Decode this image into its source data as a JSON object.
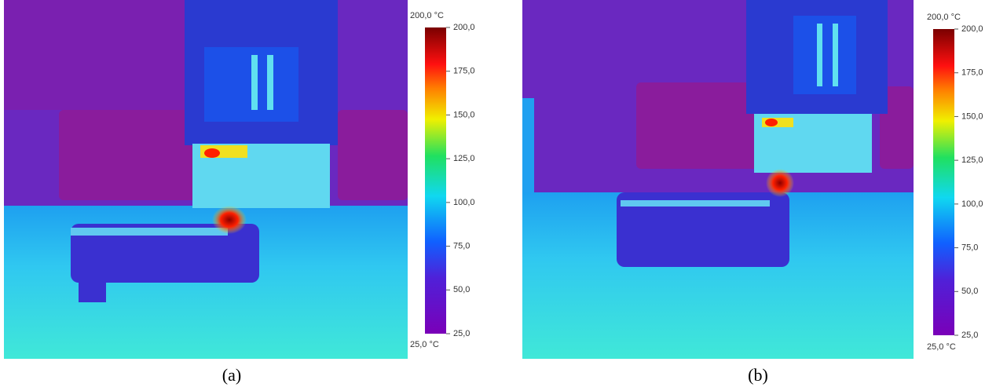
{
  "panels": [
    {
      "caption": "(a)",
      "colorbar": {
        "top_label": "200,0 °C",
        "bottom_label": "25,0 °C",
        "range": [
          25,
          200
        ],
        "ticks": [
          {
            "value": 200,
            "label": "200,0"
          },
          {
            "value": 175,
            "label": "175,0"
          },
          {
            "value": 150,
            "label": "150,0"
          },
          {
            "value": 125,
            "label": "125,0"
          },
          {
            "value": 100,
            "label": "100,0"
          },
          {
            "value": 75,
            "label": "75,0"
          },
          {
            "value": 50,
            "label": "50,0"
          },
          {
            "value": 25,
            "label": "25,0"
          }
        ]
      }
    },
    {
      "caption": "(b)",
      "colorbar": {
        "top_label": "200,0 °C",
        "bottom_label": "25,0 °C",
        "range": [
          25,
          200
        ],
        "ticks": [
          {
            "value": 200,
            "label": "200,0"
          },
          {
            "value": 175,
            "label": "175,0"
          },
          {
            "value": 150,
            "label": "150,0"
          },
          {
            "value": 125,
            "label": "125,0"
          },
          {
            "value": 100,
            "label": "100,0"
          },
          {
            "value": 75,
            "label": "75,0"
          },
          {
            "value": 50,
            "label": "50,0"
          },
          {
            "value": 25,
            "label": "25,0"
          }
        ]
      }
    }
  ]
}
